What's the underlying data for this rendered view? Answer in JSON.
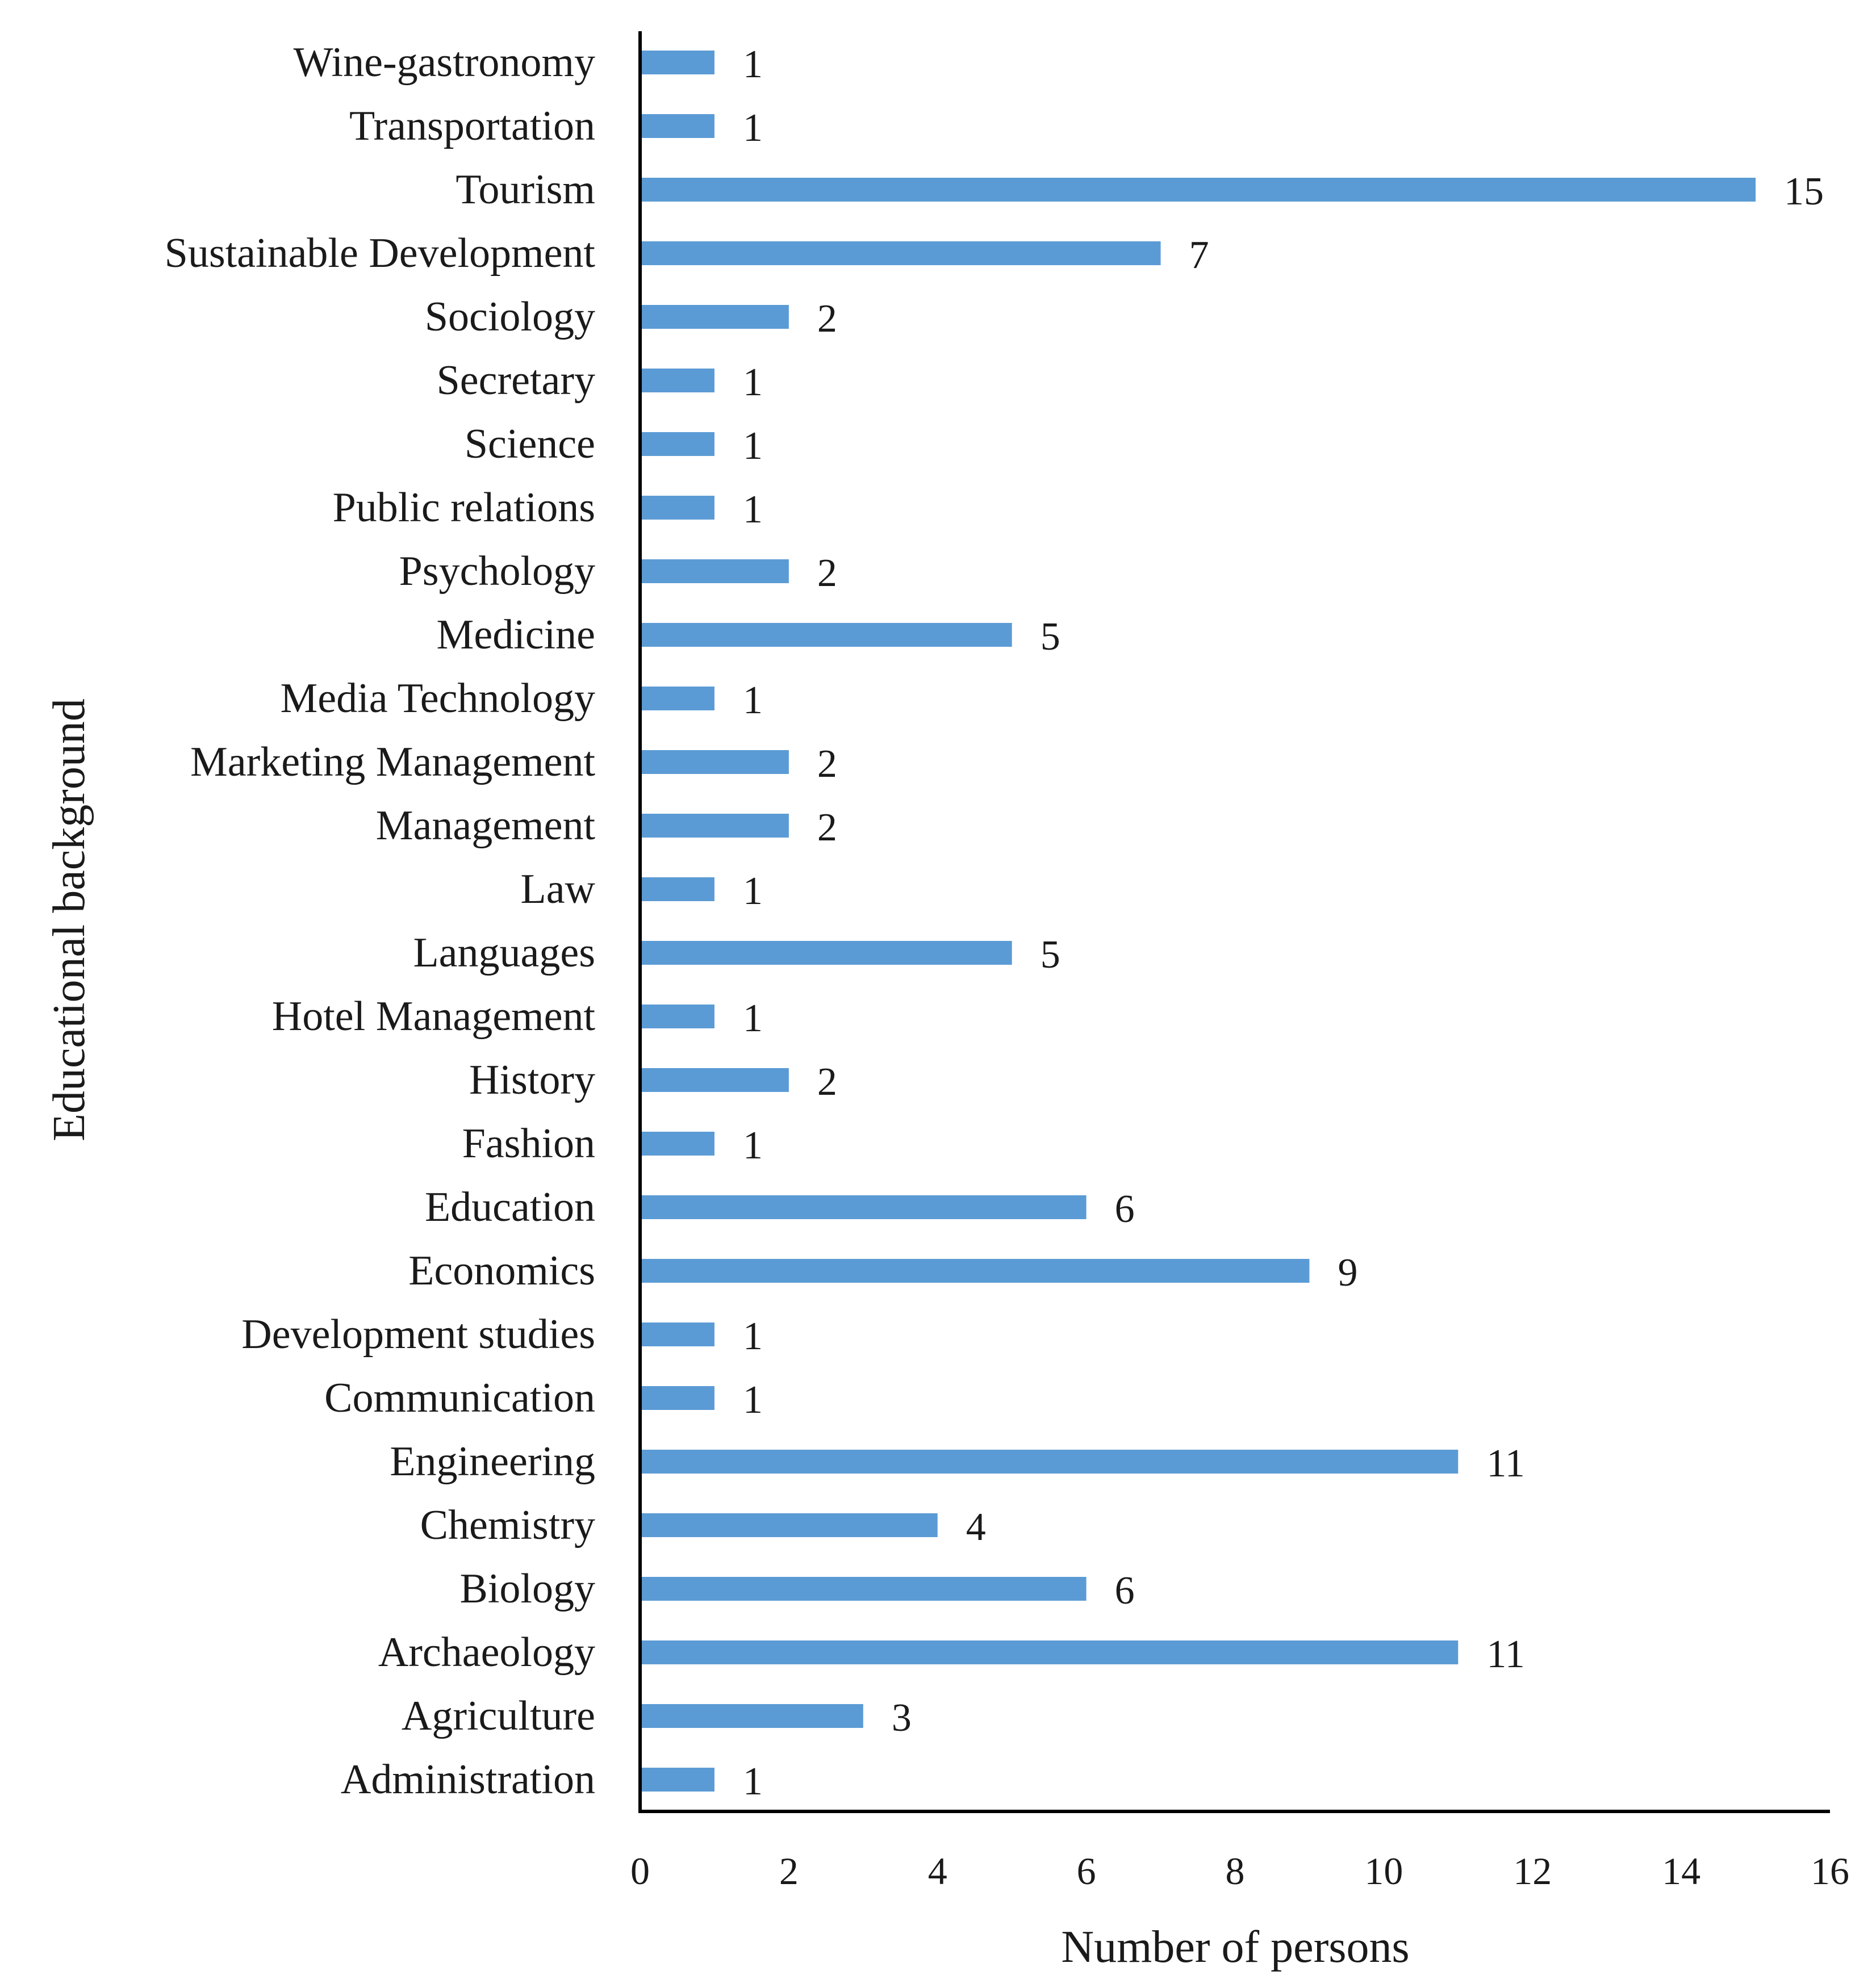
{
  "chart_data": {
    "type": "bar",
    "orientation": "horizontal",
    "title": "",
    "xlabel": "Number of persons",
    "ylabel": "Educational background",
    "xlim": [
      0,
      16
    ],
    "x_ticks": [
      0,
      2,
      4,
      6,
      8,
      10,
      12,
      14,
      16
    ],
    "grid": false,
    "legend": "none",
    "bar_color": "#5b9bd5",
    "categories": [
      "Wine-gastronomy",
      "Transportation",
      "Tourism",
      "Sustainable Development",
      "Sociology",
      "Secretary",
      "Science",
      "Public relations",
      "Psychology",
      "Medicine",
      "Media Technology",
      "Marketing Management",
      "Management",
      "Law",
      "Languages",
      "Hotel Management",
      "History",
      "Fashion",
      "Education",
      "Economics",
      "Development studies",
      "Communication",
      "Engineering",
      "Chemistry",
      "Biology",
      "Archaeology",
      "Agriculture",
      "Administration"
    ],
    "values": [
      1,
      1,
      15,
      7,
      2,
      1,
      1,
      1,
      2,
      5,
      1,
      2,
      2,
      1,
      5,
      1,
      2,
      1,
      6,
      9,
      1,
      1,
      11,
      4,
      6,
      11,
      3,
      1
    ]
  }
}
